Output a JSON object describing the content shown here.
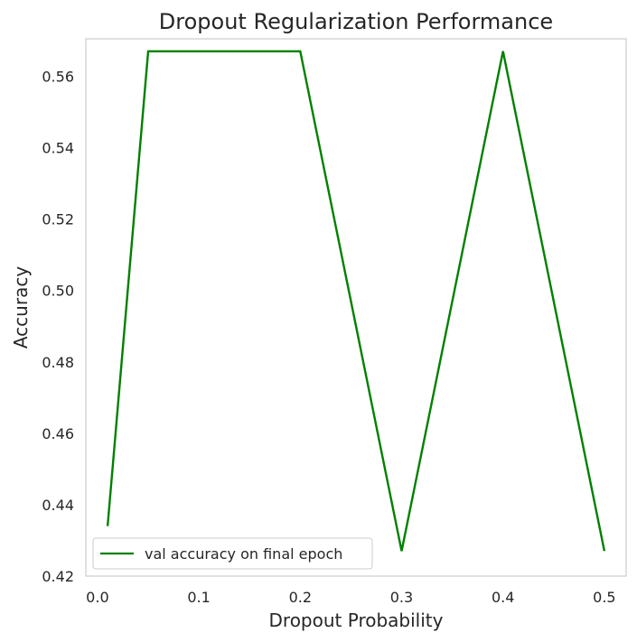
{
  "chart_data": {
    "type": "line",
    "title": "Dropout Regularization Performance",
    "xlabel": "Dropout Probability",
    "ylabel": "Accuracy",
    "xlim": [
      -0.0115,
      0.5215
    ],
    "ylim": [
      0.42,
      0.5705
    ],
    "grid": false,
    "legend_position": "lower-left",
    "xticks": [
      0.0,
      0.1,
      0.2,
      0.3,
      0.4,
      0.5
    ],
    "xtick_labels": [
      "0.0",
      "0.1",
      "0.2",
      "0.3",
      "0.4",
      "0.5"
    ],
    "yticks": [
      0.42,
      0.44,
      0.46,
      0.48,
      0.5,
      0.52,
      0.54,
      0.56
    ],
    "ytick_labels": [
      "0.42",
      "0.44",
      "0.46",
      "0.48",
      "0.50",
      "0.52",
      "0.54",
      "0.56"
    ],
    "series": [
      {
        "name": "val accuracy on final epoch",
        "color": "#008000",
        "x": [
          0.01,
          0.05,
          0.1,
          0.2,
          0.3,
          0.4,
          0.5
        ],
        "y": [
          0.434,
          0.567,
          0.567,
          0.567,
          0.427,
          0.567,
          0.427
        ]
      }
    ]
  }
}
